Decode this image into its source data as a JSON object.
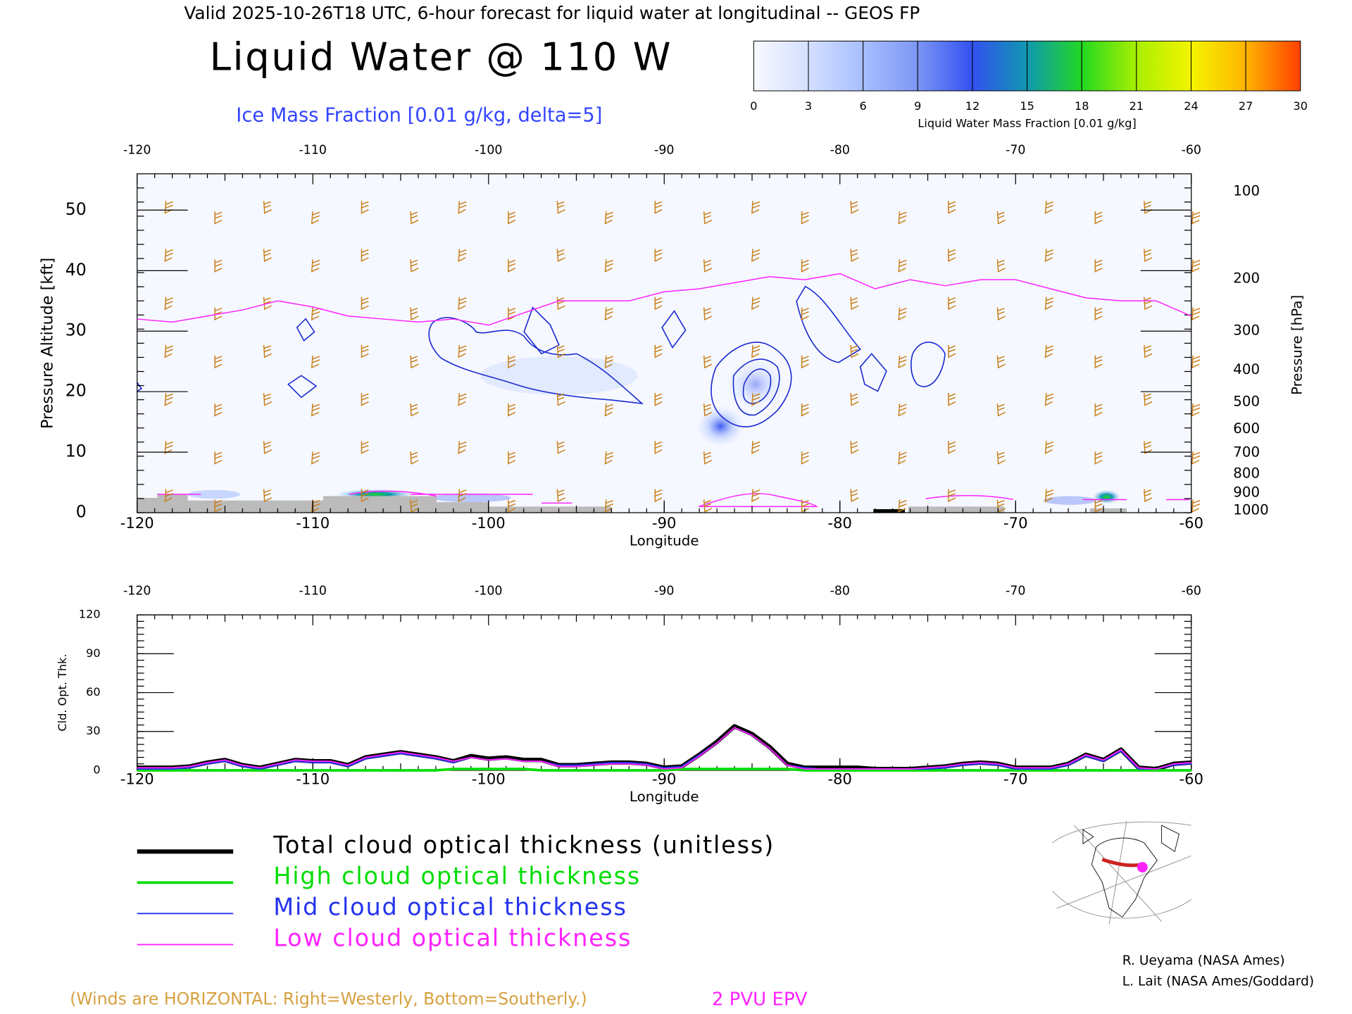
{
  "header": {
    "title": "Valid 2025-10-26T18 UTC, 6-hour forecast for liquid water at longitudinal -- GEOS FP"
  },
  "chart_data": [
    {
      "type": "colorbar",
      "title": "Liquid Water Mass Fraction [0.01 g/kg]",
      "lim": [
        0,
        30
      ],
      "ticks": [
        0,
        3,
        6,
        9,
        12,
        15,
        18,
        21,
        24,
        27,
        30
      ],
      "colors": [
        "#f8faff",
        "#d4e0ff",
        "#a8bfff",
        "#7c96f5",
        "#3350f0",
        "#1098b0",
        "#22d822",
        "#a8f000",
        "#f4f400",
        "#ffb400",
        "#ff4000"
      ]
    },
    {
      "type": "line",
      "title": "Liquid Water @ 110 W",
      "subtitle": "Ice Mass Fraction [0.01 g/kg, delta=5]",
      "xlabel": "Longitude",
      "ylabel": "Pressure Altitude [kft]",
      "y2label": "Pressure [hPa]",
      "xlim": [
        -120,
        -60
      ],
      "xticks": [
        -120,
        -110,
        -100,
        -90,
        -80,
        -70,
        -60
      ],
      "ylim": [
        0,
        56
      ],
      "yticks": [
        0,
        10,
        20,
        30,
        40,
        50
      ],
      "y2scale": "standard-atmosphere",
      "y2ticks": [
        100,
        200,
        300,
        400,
        500,
        600,
        700,
        800,
        900,
        1000
      ],
      "annotation": "(Winds are HORIZONTAL: Right=Westerly, Bottom=Southerly.)",
      "x": [
        -120,
        -118,
        -116,
        -114,
        -112,
        -110,
        -108,
        -106,
        -104,
        -102,
        -100,
        -98,
        -96,
        -94,
        -92,
        -90,
        -88,
        -86,
        -84,
        -82,
        -80,
        -78,
        -76,
        -74,
        -72,
        -70,
        -68,
        -66,
        -64,
        -62,
        -60
      ],
      "series": [
        {
          "name": "2 PVU EPV",
          "color": "#ff22ff",
          "values": [
            32,
            31.5,
            32.5,
            33.5,
            35,
            34,
            32.5,
            32,
            31.5,
            32,
            31,
            33,
            35,
            35,
            35,
            36.5,
            37,
            38,
            39,
            38.5,
            39.5,
            37,
            38.5,
            37.5,
            38.5,
            38.5,
            37,
            35.5,
            35,
            35,
            32.5
          ]
        }
      ]
    },
    {
      "type": "line",
      "xlabel": "Longitude",
      "ylabel": "Cld. Opt. Thk.",
      "xlim": [
        -120,
        -60
      ],
      "xticks": [
        -120,
        -110,
        -100,
        -90,
        -80,
        -70,
        -60
      ],
      "ylim": [
        0,
        120
      ],
      "yticks": [
        0,
        30,
        60,
        90,
        120
      ],
      "x": [
        -120,
        -119,
        -118,
        -117,
        -116,
        -115,
        -114,
        -113,
        -112,
        -111,
        -110,
        -109,
        -108,
        -107,
        -106,
        -105,
        -104,
        -103,
        -102,
        -101,
        -100,
        -99,
        -98,
        -97,
        -96,
        -95,
        -94,
        -93,
        -92,
        -91,
        -90,
        -89,
        -88,
        -87,
        -86,
        -85,
        -84,
        -83,
        -82,
        -81,
        -80,
        -79,
        -78,
        -77,
        -76,
        -75,
        -74,
        -73,
        -72,
        -71,
        -70,
        -69,
        -68,
        -67,
        -66,
        -65,
        -64,
        -63,
        -62,
        -61,
        -60
      ],
      "series": [
        {
          "name": "Total cloud optical thickness (unitless)",
          "color": "#000000",
          "values": [
            2,
            2,
            2,
            3,
            6,
            8,
            4,
            2,
            5,
            8,
            7,
            7,
            4,
            10,
            12,
            14,
            12,
            10,
            7,
            11,
            9,
            10,
            8,
            8,
            4,
            4,
            5,
            6,
            6,
            5,
            2,
            3,
            12,
            22,
            34,
            28,
            18,
            5,
            2,
            2,
            2,
            2,
            1,
            1,
            1,
            2,
            3,
            5,
            6,
            5,
            2,
            2,
            2,
            5,
            12,
            8,
            16,
            2,
            1,
            5,
            6
          ]
        },
        {
          "name": "High cloud optical thickness",
          "color": "#00dd00",
          "values": [
            0,
            0,
            0,
            0,
            0,
            0,
            0,
            0,
            0,
            0,
            0,
            0,
            0,
            0,
            0,
            0,
            0,
            0,
            1,
            1,
            1,
            1,
            1,
            0,
            0,
            0,
            0,
            0,
            0,
            0,
            0,
            1,
            1,
            1,
            1,
            1,
            1,
            1,
            0,
            0,
            0,
            0,
            0,
            0,
            0,
            0,
            0,
            0,
            0,
            0,
            0,
            0,
            0,
            0,
            0,
            0,
            0,
            0,
            0,
            0,
            0
          ]
        },
        {
          "name": "Mid cloud optical thickness",
          "color": "#2233ee",
          "values": [
            1,
            1,
            1,
            2,
            5,
            7,
            3,
            1,
            4,
            7,
            6,
            6,
            3,
            9,
            11,
            13,
            11,
            9,
            6,
            10,
            8,
            9,
            7,
            7,
            4,
            4,
            5,
            6,
            6,
            5,
            2,
            3,
            12,
            21,
            33,
            27,
            17,
            4,
            2,
            1,
            1,
            1,
            1,
            1,
            1,
            1,
            2,
            4,
            5,
            4,
            1,
            1,
            1,
            4,
            11,
            7,
            15,
            1,
            1,
            4,
            5
          ]
        },
        {
          "name": "Low cloud optical thickness",
          "color": "#ff22ff",
          "values": [
            2,
            2,
            2,
            3,
            6,
            8,
            4,
            2,
            5,
            8,
            7,
            7,
            4,
            10,
            12,
            14,
            12,
            10,
            7,
            10,
            8,
            9,
            7,
            7,
            3,
            3,
            4,
            5,
            5,
            4,
            1,
            2,
            11,
            21,
            33,
            27,
            17,
            4,
            1,
            1,
            1,
            1,
            1,
            1,
            1,
            2,
            3,
            5,
            6,
            5,
            2,
            2,
            2,
            5,
            12,
            8,
            16,
            2,
            1,
            5,
            6
          ]
        }
      ]
    }
  ],
  "credits": [
    "R. Ueyama (NASA Ames)",
    "L. Lait (NASA Ames/Goddard)"
  ]
}
